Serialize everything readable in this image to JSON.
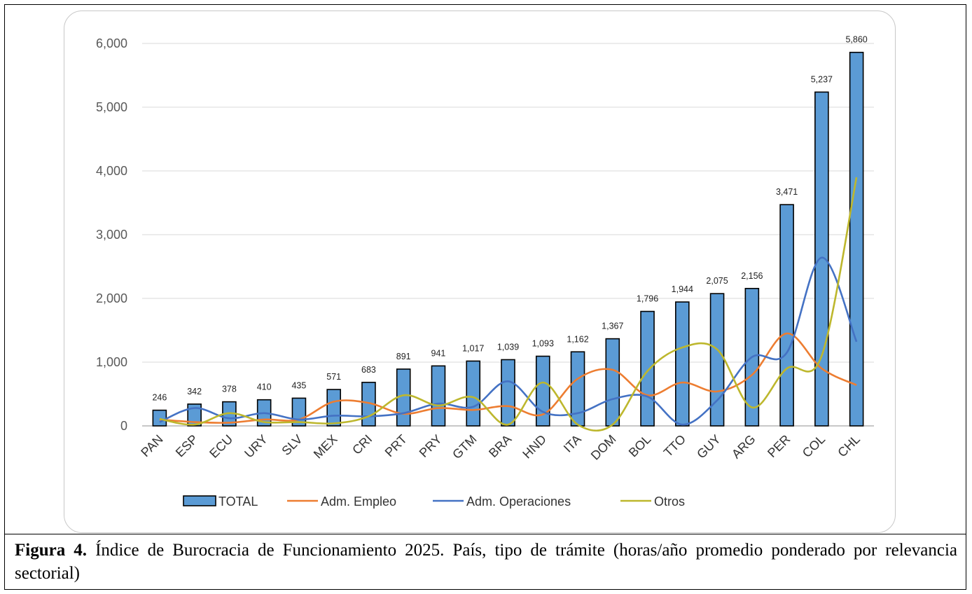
{
  "chart_data": {
    "type": "bar",
    "categories": [
      "PAN",
      "ESP",
      "ECU",
      "URY",
      "SLV",
      "MEX",
      "CRI",
      "PRT",
      "PRY",
      "GTM",
      "BRA",
      "HND",
      "ITA",
      "DOM",
      "BOL",
      "TTO",
      "GUY",
      "ARG",
      "PER",
      "COL",
      "CHL"
    ],
    "series": [
      {
        "name": "TOTAL",
        "type": "bar",
        "color": "#5b9bd5",
        "values": [
          246,
          342,
          378,
          410,
          435,
          571,
          683,
          891,
          941,
          1017,
          1039,
          1093,
          1162,
          1367,
          1796,
          1944,
          2075,
          2156,
          3471,
          5237,
          5860
        ],
        "labels": [
          "246",
          "342",
          "378",
          "410",
          "435",
          "571",
          "683",
          "891",
          "941",
          "1,017",
          "1,039",
          "1,093",
          "1,162",
          "1,367",
          "1,796",
          "1,944",
          "2,075",
          "2,156",
          "3,471",
          "5,237",
          "5,860"
        ]
      },
      {
        "name": "Adm. Empleo",
        "type": "line",
        "color": "#ed7d31",
        "values": [
          100,
          60,
          50,
          100,
          100,
          380,
          360,
          190,
          280,
          250,
          310,
          180,
          740,
          880,
          480,
          680,
          540,
          800,
          1450,
          900,
          640
        ]
      },
      {
        "name": "Adm. Operaciones",
        "type": "line",
        "color": "#4472c4",
        "values": [
          60,
          280,
          120,
          200,
          100,
          160,
          150,
          200,
          350,
          300,
          700,
          220,
          200,
          420,
          460,
          20,
          400,
          1080,
          1150,
          2640,
          1320
        ]
      },
      {
        "name": "Otros",
        "type": "line",
        "color": "#bdb72d",
        "values": [
          110,
          20,
          200,
          60,
          60,
          40,
          150,
          480,
          320,
          450,
          20,
          680,
          20,
          20,
          860,
          1230,
          1200,
          290,
          900,
          1100,
          3900
        ]
      }
    ],
    "yticks": [
      "0",
      "1,000",
      "2,000",
      "3,000",
      "4,000",
      "5,000",
      "6,000"
    ],
    "ylim": [
      0,
      6000
    ],
    "grid": true,
    "legend": "bottom"
  },
  "caption": {
    "bold": "Figura 4.",
    "text": " Índice de Burocracia de Funcionamiento 2025. País, tipo de trámite (horas/año promedio ponderado por relevancia sectorial)"
  }
}
